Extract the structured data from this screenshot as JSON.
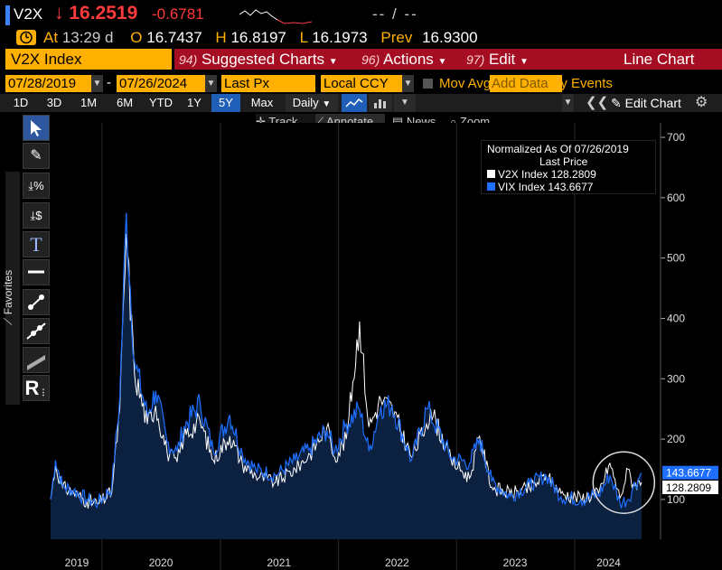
{
  "header": {
    "ticker": "V2X",
    "price_arrow": "↓",
    "price": "16.2519",
    "change": "-0.6781",
    "dashes": "-- / --"
  },
  "quote": {
    "at_label": "At",
    "time": "13:29 d",
    "open_label": "O",
    "open": "16.7437",
    "high_label": "H",
    "high": "16.8197",
    "low_label": "L",
    "low": "16.1973",
    "prev_label": "Prev",
    "prev": "16.9300"
  },
  "security": "V2X Index",
  "menu": {
    "suggested": {
      "num": "94)",
      "label": "Suggested Charts"
    },
    "actions": {
      "num": "96)",
      "label": "Actions"
    },
    "edit": {
      "num": "97)",
      "label": "Edit"
    },
    "chart_type": "Line Chart"
  },
  "controls": {
    "start_date": "07/28/2019",
    "end_date": "07/26/2024",
    "field": "Last Px",
    "currency": "Local CCY",
    "mov_avgs": "Mov Avgs",
    "key_events": "Key Events",
    "add_data": "Add Data",
    "edit_chart": "Edit Chart",
    "date_sep": "-"
  },
  "periods": [
    "1D",
    "3D",
    "1M",
    "6M",
    "YTD",
    "1Y",
    "5Y",
    "Max"
  ],
  "active_period": "5Y",
  "frequency": "Daily",
  "tools": {
    "track": "Track",
    "annotate": "Annotate",
    "news": "News",
    "zoom": "Zoom"
  },
  "favorites_label": "Favorites",
  "left_tools": [
    "cursor",
    "pencil",
    "percent",
    "dollar",
    "text",
    "line",
    "trend",
    "trend2",
    "band",
    "R"
  ],
  "legend": {
    "title1": "Normalized As Of 07/26/2019",
    "title2": "Last Price",
    "items": [
      {
        "name": "V2X Index",
        "value": "128.2809",
        "color": "#ffffff"
      },
      {
        "name": "VIX Index",
        "value": "143.6677",
        "color": "#1e6fff"
      }
    ]
  },
  "last_labels": {
    "vix": "143.6677",
    "v2x": "128.2809"
  },
  "colors": {
    "vix": "#1e6fff",
    "v2x": "#ffffff",
    "fill": "#0c2040",
    "accent": "#ffb000",
    "menu": "#a50e22"
  },
  "chart_data": {
    "type": "line",
    "y_ticks": [
      100,
      200,
      300,
      400,
      500,
      600,
      700
    ],
    "ylim": [
      34,
      724
    ],
    "x_year_labels": [
      "2019",
      "2020",
      "2021",
      "2022",
      "2023",
      "2024"
    ],
    "xlim": [
      "2019-07-26",
      "2024-07-26"
    ],
    "series": [
      {
        "name": "V2X Index",
        "points": [
          [
            "2019-07-26",
            100
          ],
          [
            "2019-08-10",
            155
          ],
          [
            "2019-09-01",
            120
          ],
          [
            "2019-10-05",
            112
          ],
          [
            "2019-11-15",
            97
          ],
          [
            "2019-12-20",
            92
          ],
          [
            "2020-01-31",
            112
          ],
          [
            "2020-02-25",
            250
          ],
          [
            "2020-03-16",
            540
          ],
          [
            "2020-04-10",
            310
          ],
          [
            "2020-05-20",
            225
          ],
          [
            "2020-06-15",
            255
          ],
          [
            "2020-07-20",
            178
          ],
          [
            "2020-08-20",
            162
          ],
          [
            "2020-09-10",
            205
          ],
          [
            "2020-10-30",
            230
          ],
          [
            "2020-12-10",
            165
          ],
          [
            "2021-01-30",
            205
          ],
          [
            "2021-03-10",
            158
          ],
          [
            "2021-04-20",
            140
          ],
          [
            "2021-06-20",
            128
          ],
          [
            "2021-08-20",
            150
          ],
          [
            "2021-10-05",
            175
          ],
          [
            "2021-11-26",
            220
          ],
          [
            "2021-12-20",
            170
          ],
          [
            "2022-01-25",
            200
          ],
          [
            "2022-03-07",
            395
          ],
          [
            "2022-04-05",
            220
          ],
          [
            "2022-05-12",
            265
          ],
          [
            "2022-06-16",
            250
          ],
          [
            "2022-08-15",
            170
          ],
          [
            "2022-09-30",
            225
          ],
          [
            "2022-10-13",
            250
          ],
          [
            "2022-12-15",
            165
          ],
          [
            "2023-02-10",
            135
          ],
          [
            "2023-03-13",
            205
          ],
          [
            "2023-04-20",
            120
          ],
          [
            "2023-06-15",
            110
          ],
          [
            "2023-08-15",
            118
          ],
          [
            "2023-10-05",
            140
          ],
          [
            "2023-11-20",
            110
          ],
          [
            "2024-01-20",
            102
          ],
          [
            "2024-03-15",
            110
          ],
          [
            "2024-04-19",
            160
          ],
          [
            "2024-05-20",
            102
          ],
          [
            "2024-06-14",
            150
          ],
          [
            "2024-06-30",
            125
          ],
          [
            "2024-07-26",
            128.28
          ]
        ]
      },
      {
        "name": "VIX Index",
        "points": [
          [
            "2019-07-26",
            100
          ],
          [
            "2019-08-10",
            165
          ],
          [
            "2019-09-01",
            122
          ],
          [
            "2019-10-05",
            115
          ],
          [
            "2019-11-15",
            100
          ],
          [
            "2019-12-20",
            95
          ],
          [
            "2020-01-31",
            120
          ],
          [
            "2020-02-25",
            270
          ],
          [
            "2020-03-16",
            575
          ],
          [
            "2020-04-10",
            330
          ],
          [
            "2020-05-20",
            240
          ],
          [
            "2020-06-15",
            280
          ],
          [
            "2020-07-20",
            195
          ],
          [
            "2020-08-20",
            180
          ],
          [
            "2020-09-10",
            220
          ],
          [
            "2020-10-30",
            260
          ],
          [
            "2020-12-10",
            180
          ],
          [
            "2021-01-30",
            240
          ],
          [
            "2021-03-10",
            175
          ],
          [
            "2021-04-20",
            150
          ],
          [
            "2021-06-20",
            140
          ],
          [
            "2021-08-20",
            165
          ],
          [
            "2021-10-05",
            185
          ],
          [
            "2021-11-26",
            215
          ],
          [
            "2021-12-20",
            180
          ],
          [
            "2022-01-25",
            225
          ],
          [
            "2022-03-07",
            250
          ],
          [
            "2022-04-05",
            180
          ],
          [
            "2022-05-12",
            255
          ],
          [
            "2022-06-16",
            255
          ],
          [
            "2022-08-15",
            165
          ],
          [
            "2022-09-30",
            250
          ],
          [
            "2022-10-13",
            240
          ],
          [
            "2022-12-15",
            170
          ],
          [
            "2023-02-10",
            160
          ],
          [
            "2023-03-13",
            200
          ],
          [
            "2023-04-20",
            130
          ],
          [
            "2023-06-15",
            105
          ],
          [
            "2023-08-15",
            125
          ],
          [
            "2023-10-05",
            140
          ],
          [
            "2023-11-20",
            105
          ],
          [
            "2024-01-20",
            100
          ],
          [
            "2024-03-15",
            108
          ],
          [
            "2024-04-19",
            140
          ],
          [
            "2024-05-20",
            95
          ],
          [
            "2024-06-14",
            100
          ],
          [
            "2024-06-30",
            120
          ],
          [
            "2024-07-26",
            143.67
          ]
        ]
      }
    ]
  }
}
